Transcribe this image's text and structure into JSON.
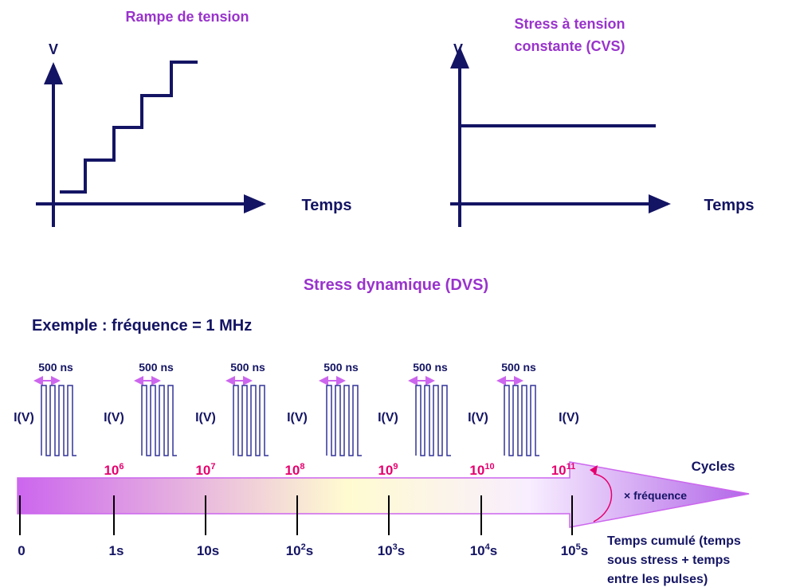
{
  "ramp": {
    "title": "Rampe de tension",
    "y_label": "V",
    "x_label": "Temps"
  },
  "cvs": {
    "title_lines": [
      "Stress à tension",
      "constante (CVS)"
    ],
    "y_label": "V",
    "x_label": "Temps"
  },
  "dvs": {
    "title": "Stress dynamique (DVS)",
    "example": "Exemple : fréquence = 1 MHz",
    "pulse_labels": [
      "500 ns",
      "500 ns",
      "500 ns",
      "500 ns",
      "500 ns",
      "500 ns"
    ],
    "iv_labels": [
      "I(V)",
      "I(V)",
      "I(V)",
      "I(V)",
      "I(V)",
      "I(V)",
      "I(V)"
    ],
    "cycles": [
      {
        "base": "10",
        "exp": "6"
      },
      {
        "base": "10",
        "exp": "7"
      },
      {
        "base": "10",
        "exp": "8"
      },
      {
        "base": "10",
        "exp": "9"
      },
      {
        "base": "10",
        "exp": "10"
      },
      {
        "base": "10",
        "exp": "11"
      }
    ],
    "cycles_label": "Cycles",
    "freq_label": "× fréquence",
    "times": [
      {
        "base": "0"
      },
      {
        "base": "1s"
      },
      {
        "base": "10s"
      },
      {
        "base": "10",
        "exp": "2",
        "unit": "s"
      },
      {
        "base": "10",
        "exp": "3",
        "unit": "s"
      },
      {
        "base": "10",
        "exp": "4",
        "unit": "s"
      },
      {
        "base": "10",
        "exp": "5",
        "unit": "s"
      }
    ],
    "time_note": [
      "Temps cumulé (temps",
      "sous stress + temps",
      "entre les pulses)"
    ]
  }
}
